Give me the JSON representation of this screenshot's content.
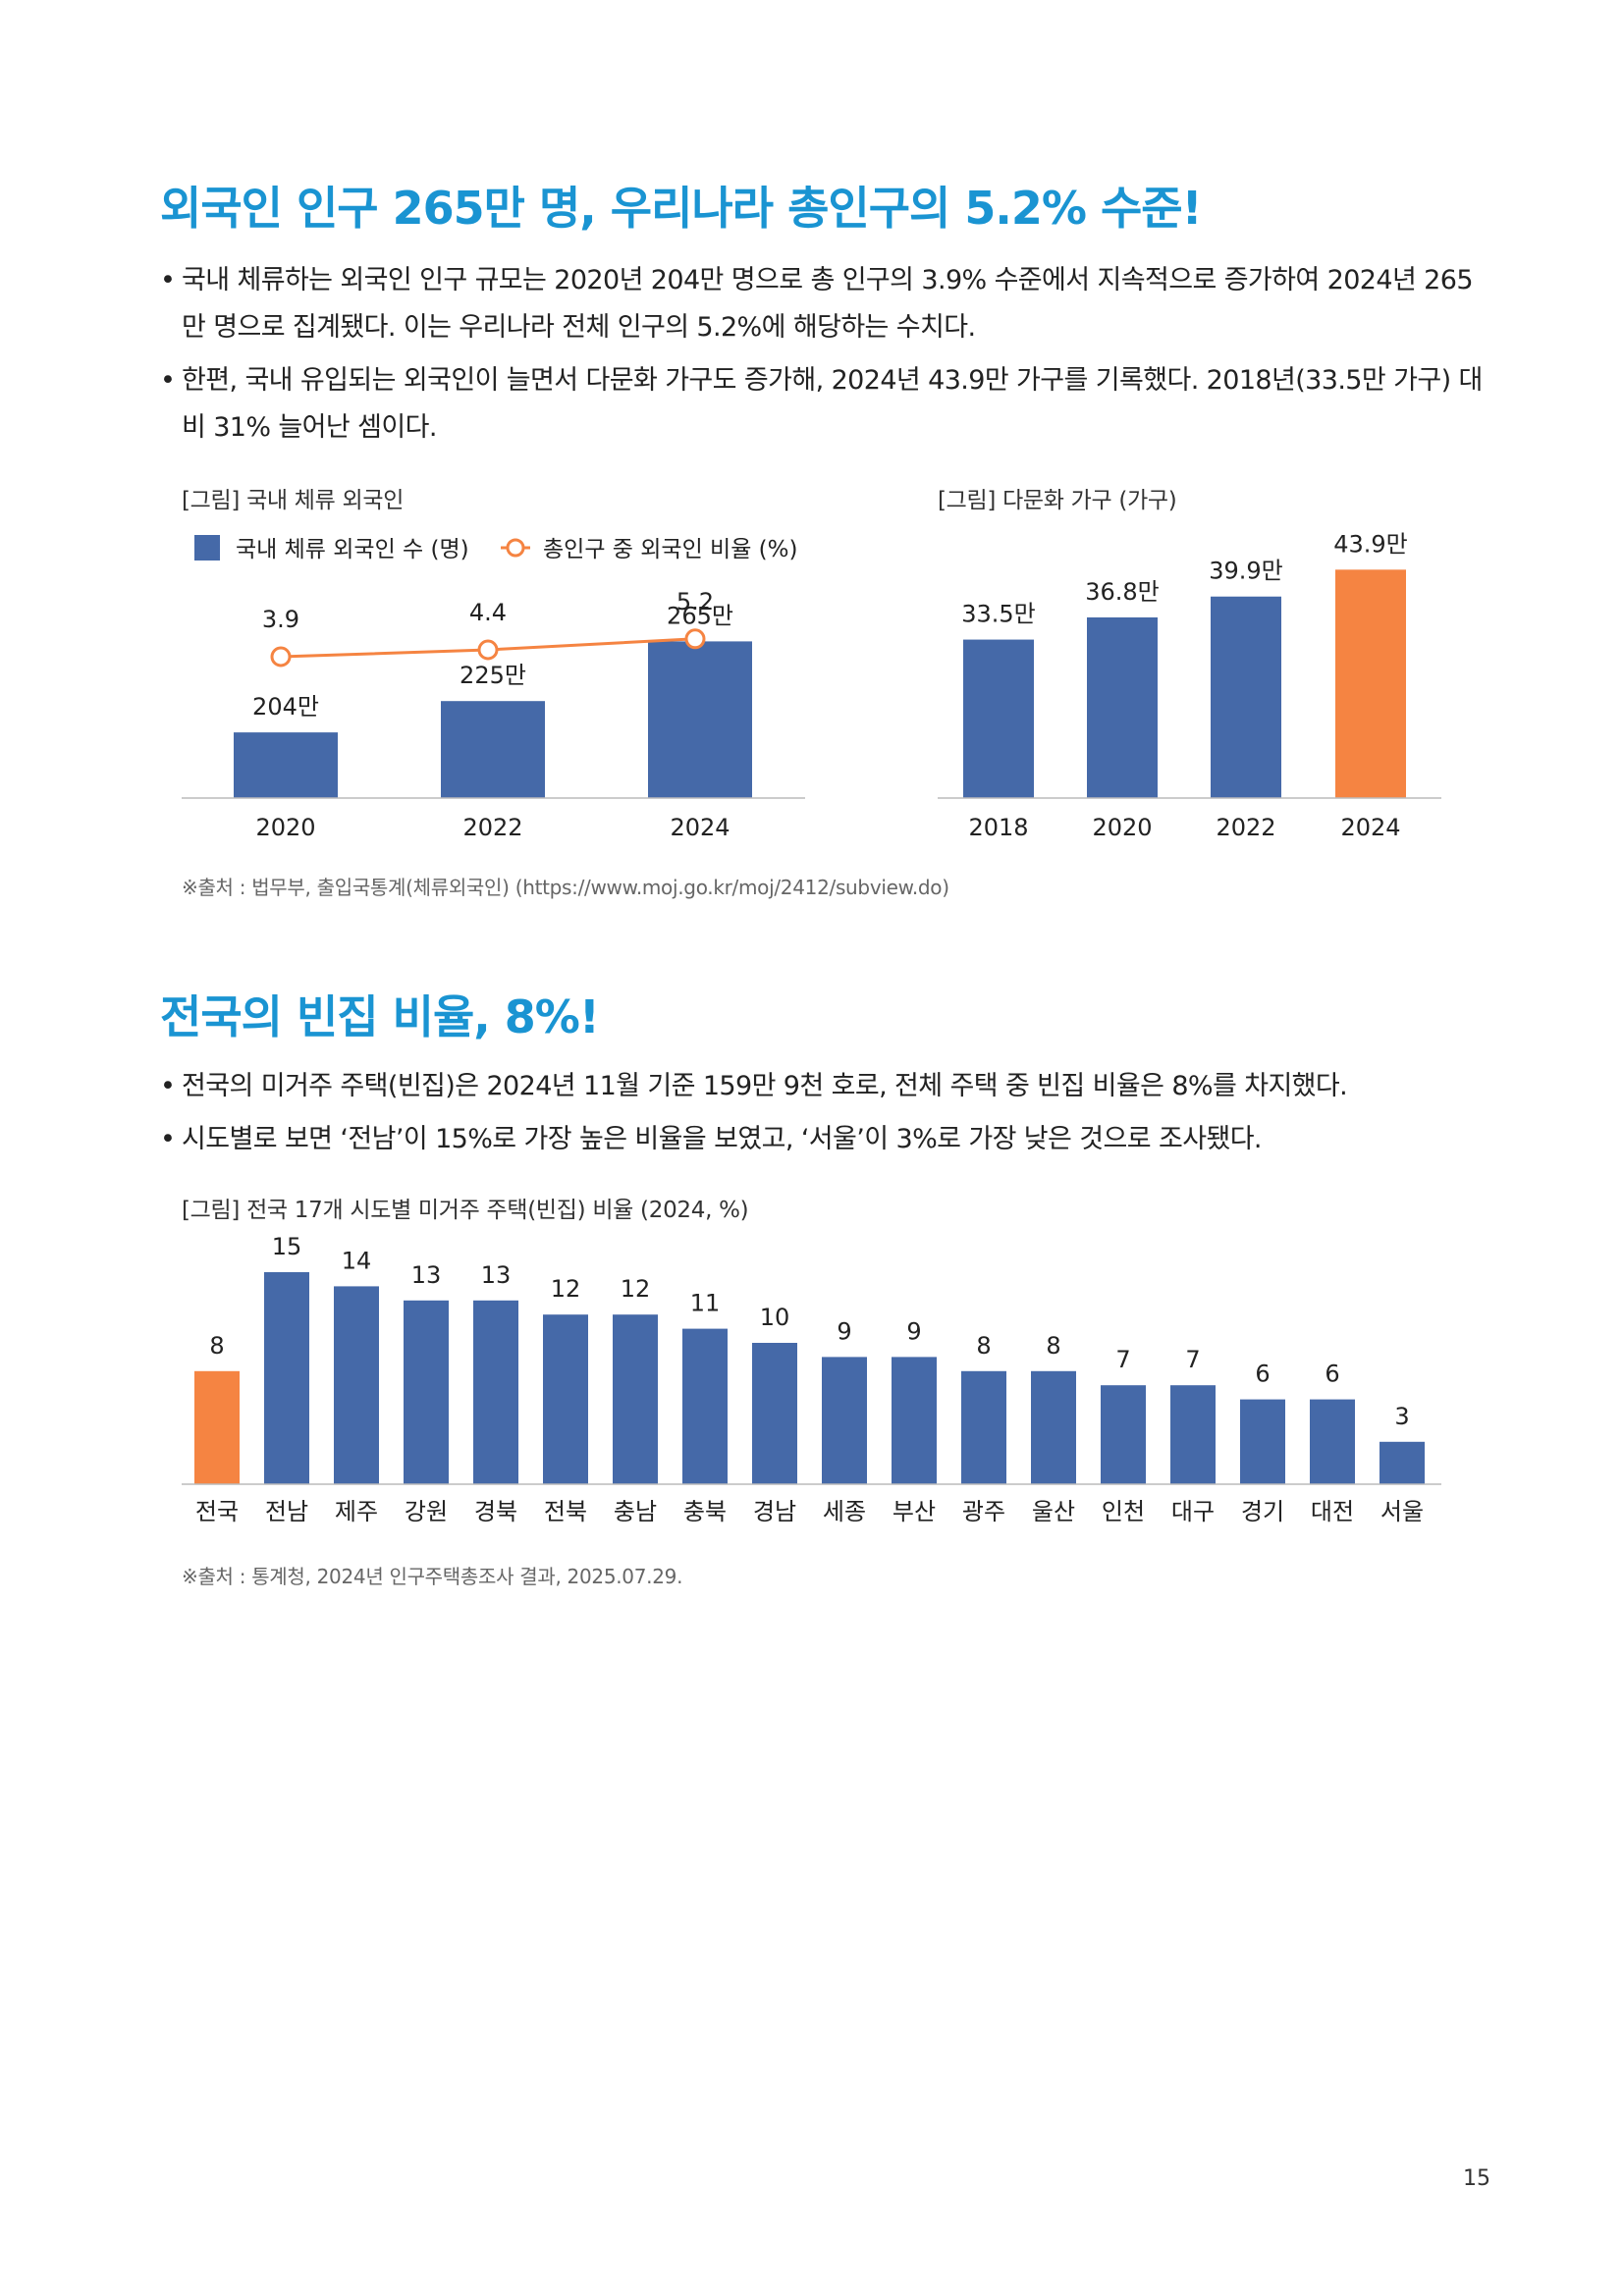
{
  "section1": {
    "title": "외국인 인구 265만 명, 우리나라 총인구의 5.2% 수준!",
    "bullets": [
      "국내 체류하는 외국인 인구 규모는 2020년 204만 명으로 총 인구의 3.9% 수준에서 지속적으로 증가하여 2024년 265만 명으로 집계됐다. 이는 우리나라 전체 인구의 5.2%에 해당하는 수치다.",
      "한편, 국내 유입되는 외국인이 늘면서 다문화 가구도 증가해, 2024년 43.9만 가구를 기록했다. 2018년(33.5만 가구) 대비 31% 늘어난 셈이다."
    ],
    "source": "※출처 : 법무부, 출입국통계(체류외국인) (https://www.moj.go.kr/moj/2412/subview.do)"
  },
  "section2": {
    "title": "전국의 빈집 비율, 8%!",
    "bullets": [
      "전국의 미거주 주택(빈집)은 2024년 11월 기준 159만 9천 호로, 전체 주택 중 빈집 비율은 8%를 차지했다.",
      "시도별로 보면 ‘전남’이 15%로 가장 높은 비율을 보였고, ‘서울’이 3%로 가장 낮은 것으로 조사됐다."
    ],
    "source": "※출처 : 통계청, 2024년 인구주택총조사 결과, 2025.07.29."
  },
  "page_number": "15",
  "colors": {
    "heading": "#1a94d2",
    "bar": "#4569a8",
    "highlight": "#f58442",
    "line": "#f58442"
  },
  "chart_data": [
    {
      "type": "bar",
      "title": "[그림] 국내 체류 외국인",
      "categories": [
        "2020",
        "2022",
        "2024"
      ],
      "series": [
        {
          "name": "국내 체류 외국인 수 (명)",
          "kind": "bar",
          "values": [
            204,
            225,
            265
          ],
          "labels": [
            "204만",
            "225만",
            "265만"
          ]
        },
        {
          "name": "총인구 중 외국인 비율 (%)",
          "kind": "line",
          "values": [
            3.9,
            4.4,
            5.2
          ],
          "labels": [
            "3.9",
            "4.4",
            "5.2"
          ]
        }
      ],
      "legend": "top-left"
    },
    {
      "type": "bar",
      "title": "[그림] 다문화 가구 (가구)",
      "categories": [
        "2018",
        "2020",
        "2022",
        "2024"
      ],
      "values": [
        33.5,
        36.8,
        39.9,
        43.9
      ],
      "labels": [
        "33.5만",
        "36.8만",
        "39.9만",
        "43.9만"
      ],
      "highlight": [
        3
      ]
    },
    {
      "type": "bar",
      "title": "[그림] 전국 17개 시도별 미거주 주택(빈집) 비율 (2024, %)",
      "categories": [
        "전국",
        "전남",
        "제주",
        "강원",
        "경북",
        "전북",
        "충남",
        "충북",
        "경남",
        "세종",
        "부산",
        "광주",
        "울산",
        "인천",
        "대구",
        "경기",
        "대전",
        "서울"
      ],
      "values": [
        8,
        15,
        14,
        13,
        13,
        12,
        12,
        11,
        10,
        9,
        9,
        8,
        8,
        7,
        7,
        6,
        6,
        3
      ],
      "highlight": [
        0
      ]
    }
  ]
}
